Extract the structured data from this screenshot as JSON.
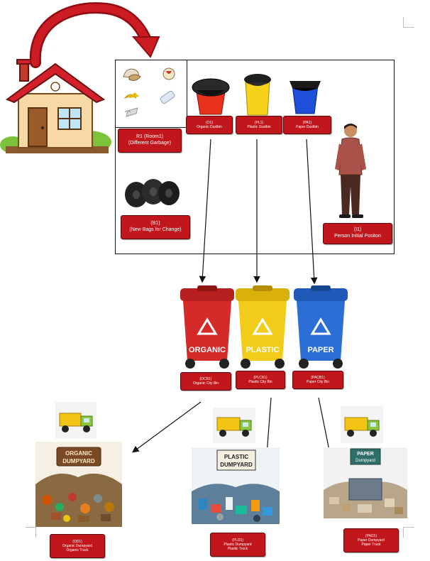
{
  "labels": {
    "r1": {
      "line1": "R1 (Room1)",
      "line2": "(Different Garbage)"
    },
    "b1": {
      "line1": "(B1)",
      "line2": "(New Bags for Change)"
    },
    "o1": {
      "line1": "(O1)",
      "line2": "Organic Dustbin"
    },
    "pl1": {
      "line1": "(PL1)",
      "line2": "Plastic Dustbin"
    },
    "pa1": {
      "line1": "(PA1)",
      "line2": "Paper Dustbin"
    },
    "i1": {
      "line1": "(I1)",
      "line2": "Person Initial Positon"
    },
    "ocb1": {
      "line1": "(OCB1)",
      "line2": "Organic City Bin"
    },
    "plcb1": {
      "line1": "(PLCB1)",
      "line2": "Plastic City Bin"
    },
    "pacb1": {
      "line1": "(PACB1)",
      "line2": "Paper City Bin"
    },
    "od1": {
      "line1": "(OD1)",
      "line2": "Organic Dumpyard",
      "line3": "Organic Truck"
    },
    "pld1": {
      "line1": "(PLD1)",
      "line2": "Plastic Dumpyard",
      "line3": "Plastic Truck"
    },
    "pad1": {
      "line1": "(PAD1)",
      "line2": "Paper Dumpyard",
      "line3": "Paper Truck"
    }
  },
  "bins": {
    "organic": {
      "text": "ORGANIC",
      "color": "#d42a2a"
    },
    "plastic": {
      "text": "PLASTIC",
      "color": "#f2cc1a"
    },
    "paper": {
      "text": "PAPER",
      "color": "#2b6fd6"
    }
  },
  "dumpyards": {
    "organic": {
      "line1": "ORGANIC",
      "line2": "DUMPYARD"
    },
    "plastic": {
      "line1": "PLASTIC",
      "line2": "DUMPYARD"
    },
    "paper": {
      "line1": "PAPER",
      "line2": "Dumpyard"
    }
  },
  "colors": {
    "label_red": "#c0161c",
    "arrow_red": "#b5121b",
    "house_roof": "#d4202a"
  }
}
